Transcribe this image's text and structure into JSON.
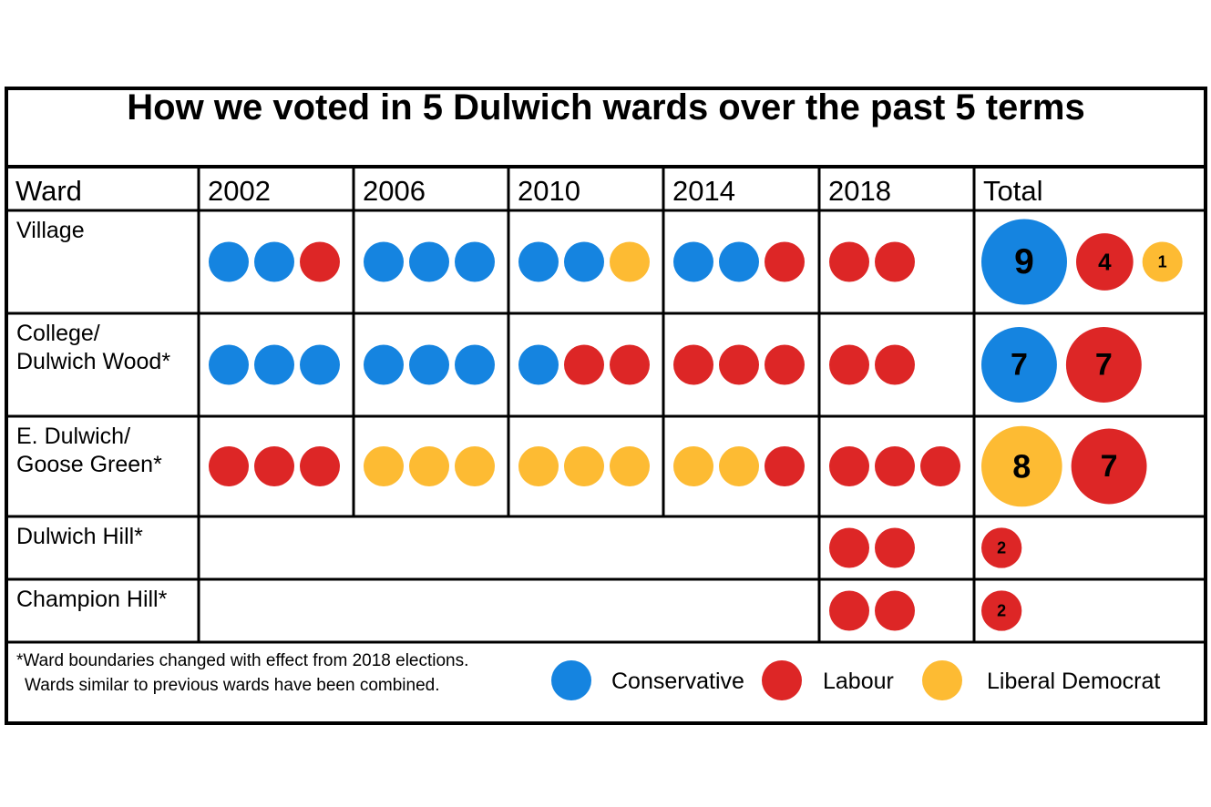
{
  "chart_data": {
    "type": "table",
    "title": "How we voted in 5 Dulwich wards over the past 5 terms",
    "columns": [
      "Ward",
      "2002",
      "2006",
      "2010",
      "2014",
      "2018",
      "Total"
    ],
    "parties": [
      {
        "key": "C",
        "name": "Conservative",
        "color": "#1584E0"
      },
      {
        "key": "L",
        "name": "Labour",
        "color": "#DD2626"
      },
      {
        "key": "D",
        "name": "Liberal Democrat",
        "color": "#FDBB33"
      }
    ],
    "rows": [
      {
        "ward_lines": [
          "Village"
        ],
        "seats": {
          "2002": [
            "C",
            "C",
            "L"
          ],
          "2006": [
            "C",
            "C",
            "C"
          ],
          "2010": [
            "C",
            "C",
            "D"
          ],
          "2014": [
            "C",
            "C",
            "L"
          ],
          "2018": [
            "L",
            "L"
          ]
        },
        "totals": [
          {
            "party": "C",
            "count": "9"
          },
          {
            "party": "L",
            "count": "4"
          },
          {
            "party": "D",
            "count": "1"
          }
        ]
      },
      {
        "ward_lines": [
          "College/",
          "Dulwich Wood*"
        ],
        "seats": {
          "2002": [
            "C",
            "C",
            "C"
          ],
          "2006": [
            "C",
            "C",
            "C"
          ],
          "2010": [
            "C",
            "L",
            "L"
          ],
          "2014": [
            "L",
            "L",
            "L"
          ],
          "2018": [
            "L",
            "L"
          ]
        },
        "totals": [
          {
            "party": "C",
            "count": "7"
          },
          {
            "party": "L",
            "count": "7"
          }
        ]
      },
      {
        "ward_lines": [
          "E. Dulwich/",
          "Goose Green*"
        ],
        "seats": {
          "2002": [
            "L",
            "L",
            "L"
          ],
          "2006": [
            "D",
            "D",
            "D"
          ],
          "2010": [
            "D",
            "D",
            "D"
          ],
          "2014": [
            "D",
            "D",
            "L"
          ],
          "2018": [
            "L",
            "L",
            "L"
          ]
        },
        "totals": [
          {
            "party": "D",
            "count": "8"
          },
          {
            "party": "L",
            "count": "7"
          }
        ]
      },
      {
        "ward_lines": [
          "Dulwich Hill*"
        ],
        "seats": {
          "2018": [
            "L",
            "L"
          ]
        },
        "totals": [
          {
            "party": "L",
            "count": "2"
          }
        ]
      },
      {
        "ward_lines": [
          "Champion Hill*"
        ],
        "seats": {
          "2018": [
            "L",
            "L"
          ]
        },
        "totals": [
          {
            "party": "L",
            "count": "2"
          }
        ]
      }
    ],
    "footnote_lines": [
      "*Ward boundaries changed with effect from 2018 elections.",
      "Wards similar to previous wards have been combined."
    ]
  }
}
